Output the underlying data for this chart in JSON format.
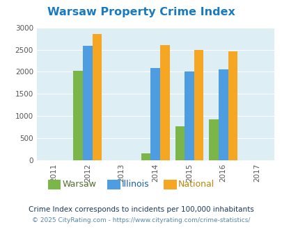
{
  "title": "Warsaw Property Crime Index",
  "title_color": "#1a7abf",
  "years": [
    2011,
    2012,
    2013,
    2014,
    2015,
    2016,
    2017
  ],
  "data": {
    "Warsaw": [
      null,
      2020,
      null,
      150,
      775,
      925,
      null
    ],
    "Illinois": [
      null,
      2580,
      null,
      2090,
      2000,
      2050,
      null
    ],
    "National": [
      null,
      2850,
      null,
      2600,
      2490,
      2460,
      null
    ]
  },
  "colors": {
    "Warsaw": "#7ab648",
    "Illinois": "#4d9de0",
    "National": "#f5a623"
  },
  "legend_text_colors": {
    "Warsaw": "#556b2f",
    "Illinois": "#1a5fa8",
    "National": "#b8860b"
  },
  "ylim": [
    0,
    3000
  ],
  "yticks": [
    0,
    500,
    1000,
    1500,
    2000,
    2500,
    3000
  ],
  "bar_width": 0.28,
  "bg_color": "#ddeef5",
  "note": "Crime Index corresponds to incidents per 100,000 inhabitants",
  "footer": "© 2025 CityRating.com - https://www.cityrating.com/crime-statistics/",
  "note_color": "#1a3a5c",
  "footer_color": "#5588aa"
}
